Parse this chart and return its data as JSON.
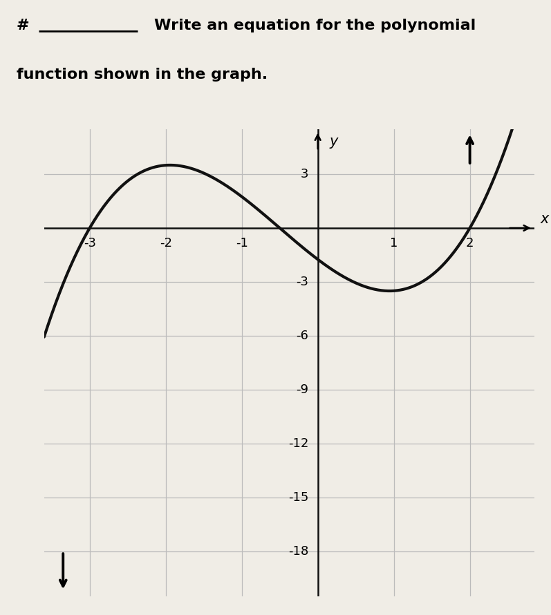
{
  "xlim": [
    -3.6,
    2.85
  ],
  "ylim": [
    -20.5,
    5.5
  ],
  "xtick_vals": [
    -3,
    -2,
    -1,
    1,
    2
  ],
  "xtick_lbls": [
    "-3",
    "-2",
    "-1",
    "1",
    "2"
  ],
  "ytick_vals": [
    3,
    -3,
    -6,
    -9,
    -12,
    -15,
    -18
  ],
  "ytick_lbls": [
    "3",
    "-3",
    "-6",
    "-9",
    "-12",
    "-15",
    "-18"
  ],
  "xlabel": "x",
  "ylabel": "y",
  "grid_x": [
    -3,
    -2,
    -1,
    0,
    1,
    2
  ],
  "grid_y": [
    3,
    0,
    -3,
    -6,
    -9,
    -12,
    -15,
    -18
  ],
  "grid_color": "#bbbbbb",
  "axis_color": "#111111",
  "curve_color": "#111111",
  "background_color": "#f0ede6",
  "text_color": "#111111",
  "line_width": 3.0,
  "font_size": 13,
  "font_size_axis_label": 15,
  "header_line1": "# ___     Write an equation for the polynomial",
  "header_line2": "function shown in the graph.",
  "poly_a": 1.0,
  "header_font_size": 16
}
